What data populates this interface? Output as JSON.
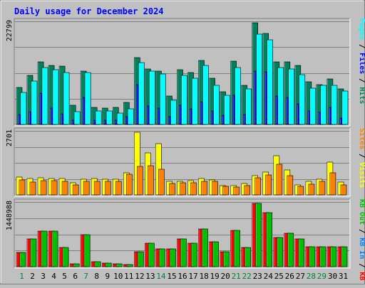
{
  "title": "Daily usage for December 2024",
  "colors": {
    "background": "#c0c0c0",
    "plot_bg": "#c0c0c0",
    "grid": "#808080",
    "title": "#0000ff",
    "weekday_label": "#000000",
    "weekend_label": "#008040",
    "hits": "#00805c",
    "files": "#0000ff",
    "pages": "#00ffff",
    "visits": "#ffff00",
    "sites": "#ff8000",
    "kb_in": "#0080ff",
    "kb_out": "#00c000",
    "kb_f": "#ff0000"
  },
  "chart_data": [
    {
      "type": "bar",
      "panel": "top",
      "ymax_label": "22799",
      "ymax": 22799,
      "legend": [
        {
          "key": "hits",
          "label": "Hits",
          "color": "#00805c"
        },
        {
          "key": "files",
          "label": "Files",
          "color": "#0000ff"
        },
        {
          "key": "pages",
          "label": "Pages",
          "color": "#00ffff"
        }
      ],
      "separator": " / ",
      "categories": [
        "1",
        "2",
        "3",
        "4",
        "5",
        "6",
        "7",
        "8",
        "9",
        "10",
        "11",
        "12",
        "13",
        "14",
        "15",
        "16",
        "17",
        "18",
        "19",
        "20",
        "21",
        "22",
        "23",
        "24",
        "25",
        "26",
        "27",
        "28",
        "29",
        "30",
        "31"
      ],
      "series": [
        {
          "name": "Hits",
          "values": [
            8300,
            11000,
            14000,
            13200,
            13000,
            4300,
            12000,
            3800,
            3700,
            3800,
            5000,
            15000,
            12500,
            12000,
            6300,
            12200,
            11600,
            14300,
            10300,
            7400,
            14200,
            8700,
            22799,
            20400,
            14000,
            14000,
            13300,
            9500,
            9000,
            10200,
            8000
          ]
        },
        {
          "name": "Files",
          "values": [
            2200,
            2800,
            7000,
            3700,
            2400,
            1000,
            6000,
            900,
            1000,
            1000,
            1700,
            9000,
            4200,
            3600,
            1800,
            4300,
            3500,
            5100,
            3000,
            2000,
            6500,
            2200,
            12000,
            11800,
            6300,
            6100,
            4700,
            3000,
            2700,
            3900,
            1500
          ]
        },
        {
          "name": "Pages",
          "values": [
            7200,
            9800,
            12700,
            12300,
            11700,
            2800,
            11600,
            3100,
            3000,
            2600,
            3500,
            13800,
            11900,
            11300,
            5400,
            11000,
            10400,
            13200,
            8700,
            6600,
            12800,
            8000,
            20300,
            18900,
            12700,
            12400,
            11200,
            8200,
            8700,
            8700,
            7500
          ]
        }
      ]
    },
    {
      "type": "bar",
      "panel": "middle",
      "ymax_label": "2701",
      "ymax": 2701,
      "legend": [
        {
          "key": "visits",
          "label": "Visits",
          "color": "#ffff00"
        },
        {
          "key": "sites",
          "label": "Sites",
          "color": "#ff8000"
        }
      ],
      "separator": " / ",
      "categories": [
        "1",
        "2",
        "3",
        "4",
        "5",
        "6",
        "7",
        "8",
        "9",
        "10",
        "11",
        "12",
        "13",
        "14",
        "15",
        "16",
        "17",
        "18",
        "19",
        "20",
        "21",
        "22",
        "23",
        "24",
        "25",
        "26",
        "27",
        "28",
        "29",
        "30",
        "31"
      ],
      "series": [
        {
          "name": "Visits",
          "values": [
            780,
            700,
            740,
            720,
            720,
            520,
            690,
            710,
            690,
            690,
            960,
            2701,
            1800,
            2200,
            570,
            570,
            600,
            720,
            640,
            400,
            400,
            480,
            830,
            990,
            1690,
            1070,
            440,
            570,
            660,
            1420,
            550
          ]
        },
        {
          "name": "Sites",
          "values": [
            630,
            560,
            620,
            620,
            580,
            420,
            580,
            580,
            580,
            580,
            880,
            1240,
            1260,
            1120,
            480,
            510,
            530,
            570,
            570,
            360,
            330,
            410,
            740,
            860,
            1310,
            830,
            380,
            470,
            590,
            950,
            420
          ]
        }
      ]
    },
    {
      "type": "bar",
      "panel": "bottom",
      "ymax_label": "1448988",
      "ymax": 1448988,
      "legend": [
        {
          "key": "kb_f",
          "label": "KB F",
          "color": "#ff0000"
        },
        {
          "key": "kb_in",
          "label": "KB In",
          "color": "#0080ff"
        },
        {
          "key": "kb_out",
          "label": "KB Out",
          "color": "#00c000"
        }
      ],
      "separator": " / ",
      "categories": [
        "1",
        "2",
        "3",
        "4",
        "5",
        "6",
        "7",
        "8",
        "9",
        "10",
        "11",
        "12",
        "13",
        "14",
        "15",
        "16",
        "17",
        "18",
        "19",
        "20",
        "21",
        "22",
        "23",
        "24",
        "25",
        "26",
        "27",
        "28",
        "29",
        "30",
        "31"
      ],
      "series": [
        {
          "name": "KB F",
          "values": [
            320000,
            640000,
            820000,
            820000,
            440000,
            60000,
            730000,
            110000,
            80000,
            60000,
            50000,
            350000,
            530000,
            410000,
            400000,
            640000,
            530000,
            870000,
            570000,
            350000,
            830000,
            440000,
            1448988,
            1230000,
            660000,
            770000,
            630000,
            460000,
            450000,
            450000,
            450000
          ]
        },
        {
          "name": "KB In",
          "values": [
            0,
            0,
            0,
            0,
            0,
            0,
            0,
            0,
            0,
            0,
            0,
            0,
            0,
            0,
            0,
            0,
            0,
            0,
            0,
            0,
            0,
            0,
            0,
            0,
            0,
            0,
            0,
            0,
            0,
            0,
            0
          ]
        },
        {
          "name": "KB Out",
          "values": [
            320000,
            640000,
            820000,
            820000,
            440000,
            60000,
            730000,
            110000,
            80000,
            60000,
            50000,
            350000,
            530000,
            410000,
            400000,
            640000,
            530000,
            870000,
            570000,
            350000,
            830000,
            440000,
            1448988,
            1230000,
            660000,
            770000,
            630000,
            460000,
            450000,
            450000,
            450000
          ]
        }
      ]
    }
  ],
  "x_labels": {
    "days": [
      "1",
      "2",
      "3",
      "4",
      "5",
      "6",
      "7",
      "8",
      "9",
      "10",
      "11",
      "12",
      "13",
      "14",
      "15",
      "16",
      "17",
      "18",
      "19",
      "20",
      "21",
      "22",
      "23",
      "24",
      "25",
      "26",
      "27",
      "28",
      "29",
      "30",
      "31"
    ],
    "weekend": [
      1,
      7,
      14,
      21,
      22,
      28,
      29
    ]
  }
}
